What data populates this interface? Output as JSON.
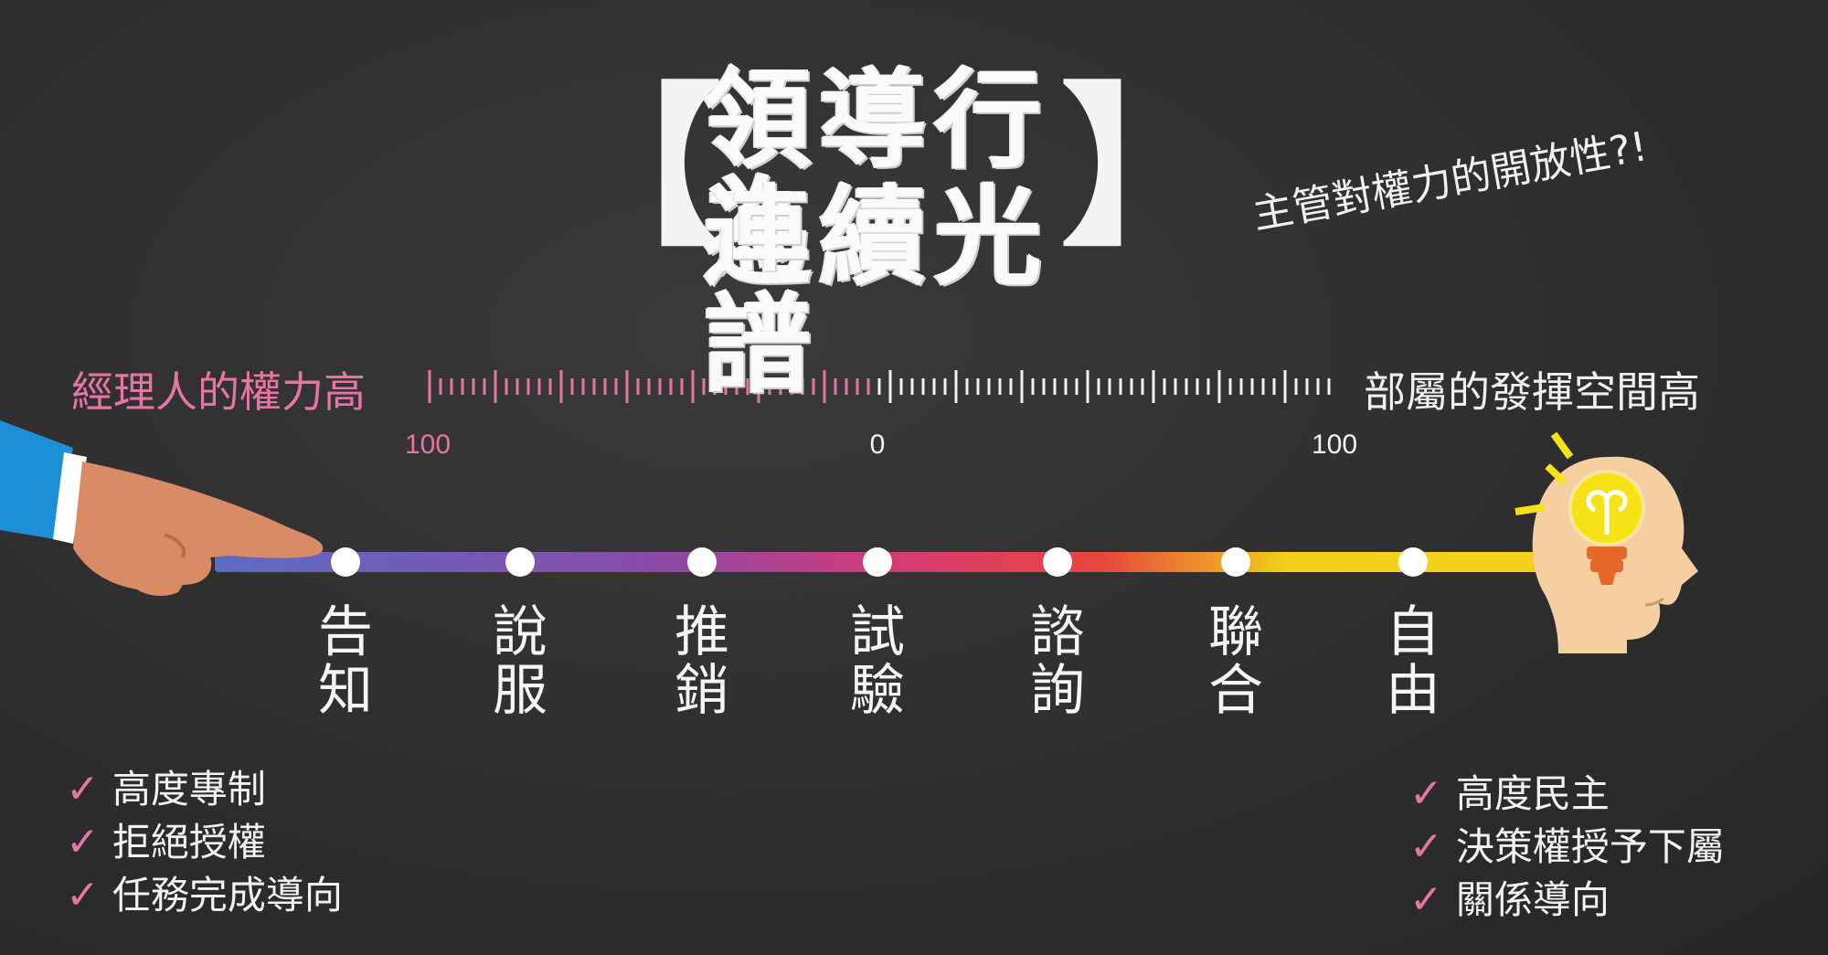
{
  "title": {
    "line1": "領導行為",
    "line2": "連續光譜",
    "bracket_open": "【",
    "bracket_close": "】"
  },
  "subtitle": "主管對權力的開放性?!",
  "scale": {
    "left_label": "經理人的權力高",
    "right_label": "部屬的發揮空間高",
    "tick_left": "100",
    "tick_center": "0",
    "tick_right": "100"
  },
  "stages": [
    {
      "line1": "告",
      "line2": "知"
    },
    {
      "line1": "說",
      "line2": "服"
    },
    {
      "line1": "推",
      "line2": "銷"
    },
    {
      "line1": "試",
      "line2": "驗"
    },
    {
      "line1": "諮",
      "line2": "詢"
    },
    {
      "line1": "聯",
      "line2": "合"
    },
    {
      "line1": "自",
      "line2": "由"
    }
  ],
  "left_traits": [
    "高度專制",
    "拒絕授權",
    "任務完成導向"
  ],
  "right_traits": [
    "高度民主",
    "決策權授予下屬",
    "關係導向"
  ],
  "check_mark": "✓",
  "icons": {
    "pointing_hand": "pointing-hand-icon",
    "idea_head": "lightbulb-head-icon"
  },
  "colors": {
    "background": "#2b2b2b",
    "accent_pink": "#e874a6",
    "chalk_white": "#f4f4f4",
    "line_blue": "#5b6cc4",
    "line_purple": "#8a4aa8",
    "line_magenta": "#d43a78",
    "line_red": "#e8463c",
    "line_yellow": "#f2d21a"
  }
}
